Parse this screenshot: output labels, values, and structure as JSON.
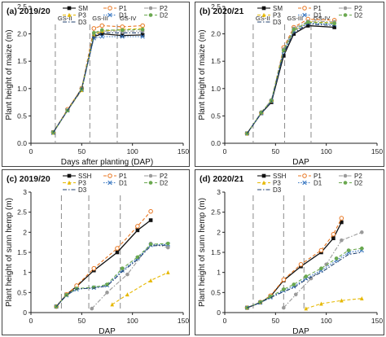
{
  "colors": {
    "SM": "#111111",
    "SSH": "#111111",
    "P1": "#e87722",
    "P2": "#9a9a9a",
    "P3": "#e6b800",
    "D1": "#3a78c2",
    "D2": "#6aa84f",
    "D3": "#1f3f6e"
  },
  "chart_data": [
    {
      "type": "line",
      "title": "(a) 2019/20",
      "xlabel": "Days after planting (DAP)",
      "ylabel": "Plant height of maize (m)",
      "xlim": [
        0,
        150
      ],
      "ylim": [
        0,
        2.5
      ],
      "xticks": [
        0,
        50,
        100,
        150
      ],
      "yticks": [
        0,
        0.5,
        1,
        1.5,
        2,
        2.5
      ],
      "ytick_labels": [
        "0.0",
        "0.5",
        "1.0",
        "1.5",
        "2.0",
        "2.5"
      ],
      "grid": false,
      "legend_position": "top-right",
      "growth_stages": [
        {
          "label": "GS-II",
          "x": 24
        },
        {
          "label": "GS-III",
          "x": 58
        },
        {
          "label": "GS-IV",
          "x": 85
        }
      ],
      "series": [
        {
          "name": "SM",
          "color_key": "SM",
          "dash": "solid",
          "marker": "square",
          "x": [
            22,
            36,
            50,
            62,
            70,
            90,
            110
          ],
          "y": [
            0.2,
            0.6,
            1.0,
            1.95,
            2.0,
            1.97,
            1.98
          ]
        },
        {
          "name": "P1",
          "color_key": "P1",
          "dash": "dash",
          "marker": "circle-open",
          "x": [
            22,
            36,
            50,
            62,
            70,
            90,
            110
          ],
          "y": [
            0.2,
            0.62,
            1.0,
            2.1,
            2.15,
            2.13,
            2.15
          ]
        },
        {
          "name": "P2",
          "color_key": "P2",
          "dash": "dashdot",
          "marker": "circle",
          "x": [
            22,
            36,
            50,
            62,
            70,
            90,
            110
          ],
          "y": [
            0.2,
            0.6,
            0.98,
            2.0,
            2.05,
            2.05,
            2.05
          ]
        },
        {
          "name": "P3",
          "color_key": "P3",
          "dash": "dash",
          "marker": "triangle",
          "x": [
            22,
            36,
            50,
            62,
            70,
            90,
            110
          ],
          "y": [
            0.19,
            0.6,
            0.97,
            1.98,
            2.05,
            2.08,
            2.1
          ]
        },
        {
          "name": "D1",
          "color_key": "D1",
          "dash": "dot",
          "marker": "cross",
          "x": [
            22,
            36,
            50,
            62,
            70,
            90,
            110
          ],
          "y": [
            0.19,
            0.6,
            0.98,
            1.92,
            1.95,
            1.95,
            1.95
          ]
        },
        {
          "name": "D2",
          "color_key": "D2",
          "dash": "dash",
          "marker": "circle",
          "x": [
            22,
            36,
            50,
            62,
            70,
            90,
            110
          ],
          "y": [
            0.2,
            0.6,
            0.99,
            2.02,
            2.07,
            2.07,
            2.08
          ]
        },
        {
          "name": "D3",
          "color_key": "D3",
          "dash": "dashdot",
          "marker": "none",
          "x": [
            22,
            36,
            50,
            62,
            70,
            90,
            110
          ],
          "y": [
            0.2,
            0.6,
            0.98,
            1.97,
            2.02,
            2.02,
            2.02
          ]
        }
      ]
    },
    {
      "type": "line",
      "title": "(b) 2020/21",
      "xlabel": "DAP",
      "ylabel": "Plant height of maize (m)",
      "xlim": [
        0,
        150
      ],
      "ylim": [
        0,
        2.5
      ],
      "xticks": [
        0,
        50,
        100,
        150
      ],
      "yticks": [
        0,
        0.5,
        1,
        1.5,
        2,
        2.5
      ],
      "ytick_labels": [
        "0.0",
        "0.5",
        "1.0",
        "1.5",
        "2.0",
        "2.5"
      ],
      "grid": false,
      "legend_position": "top-right",
      "growth_stages": [
        {
          "label": "GS-II",
          "x": 28
        },
        {
          "label": "GS-III",
          "x": 59
        },
        {
          "label": "GS-IV",
          "x": 85
        }
      ],
      "series": [
        {
          "name": "SM",
          "color_key": "SM",
          "dash": "solid",
          "marker": "square",
          "x": [
            22,
            36,
            46,
            58,
            68,
            82,
            108
          ],
          "y": [
            0.18,
            0.55,
            0.75,
            1.6,
            2.0,
            2.15,
            2.12
          ]
        },
        {
          "name": "P1",
          "color_key": "P1",
          "dash": "dash",
          "marker": "circle-open",
          "x": [
            22,
            36,
            46,
            58,
            68,
            82,
            108
          ],
          "y": [
            0.18,
            0.56,
            0.78,
            1.75,
            2.12,
            2.27,
            2.25
          ]
        },
        {
          "name": "P2",
          "color_key": "P2",
          "dash": "dashdot",
          "marker": "circle",
          "x": [
            22,
            36,
            46,
            58,
            68,
            82,
            108
          ],
          "y": [
            0.18,
            0.57,
            0.79,
            1.72,
            2.1,
            2.23,
            2.22
          ]
        },
        {
          "name": "P3",
          "color_key": "P3",
          "dash": "dash",
          "marker": "triangle",
          "x": [
            22,
            36,
            46,
            58,
            68,
            82,
            108
          ],
          "y": [
            0.18,
            0.56,
            0.78,
            1.7,
            2.05,
            2.22,
            2.2
          ]
        },
        {
          "name": "D1",
          "color_key": "D1",
          "dash": "dot",
          "marker": "cross",
          "x": [
            22,
            36,
            46,
            58,
            68,
            82,
            108
          ],
          "y": [
            0.18,
            0.55,
            0.77,
            1.68,
            2.05,
            2.2,
            2.17
          ]
        },
        {
          "name": "D2",
          "color_key": "D2",
          "dash": "dash",
          "marker": "circle",
          "x": [
            22,
            36,
            46,
            58,
            68,
            82,
            108
          ],
          "y": [
            0.18,
            0.56,
            0.78,
            1.7,
            2.08,
            2.21,
            2.19
          ]
        },
        {
          "name": "D3",
          "color_key": "D3",
          "dash": "dashdot",
          "marker": "none",
          "x": [
            22,
            36,
            46,
            58,
            68,
            82,
            108
          ],
          "y": [
            0.18,
            0.55,
            0.76,
            1.65,
            2.02,
            2.18,
            2.15
          ]
        }
      ]
    },
    {
      "type": "line",
      "title": "(c) 2019/20",
      "xlabel": "DAP",
      "ylabel": "Plant height of sunn hemp (m)",
      "xlim": [
        0,
        150
      ],
      "ylim": [
        0,
        3
      ],
      "xticks": [
        0,
        50,
        100,
        150
      ],
      "yticks": [
        0,
        0.5,
        1,
        1.5,
        2,
        2.5,
        3
      ],
      "ytick_labels": [
        "0",
        "0.5",
        "1",
        "1.5",
        "2",
        "2.5",
        "3"
      ],
      "grid": false,
      "legend_position": "top-right",
      "growth_stages": [
        {
          "label": "",
          "x": 30
        },
        {
          "label": "",
          "x": 57
        },
        {
          "label": "",
          "x": 88
        }
      ],
      "series": [
        {
          "name": "SSH",
          "color_key": "SSH",
          "dash": "solid",
          "marker": "square",
          "x": [
            25,
            35,
            45,
            62,
            85,
            105,
            118
          ],
          "y": [
            0.15,
            0.45,
            0.65,
            1.05,
            1.5,
            2.05,
            2.3
          ]
        },
        {
          "name": "P1",
          "color_key": "P1",
          "dash": "dash",
          "marker": "circle-open",
          "x": [
            25,
            35,
            45,
            62,
            85,
            105,
            118
          ],
          "y": [
            0.15,
            0.45,
            0.67,
            1.1,
            1.6,
            2.15,
            2.52
          ]
        },
        {
          "name": "P2",
          "color_key": "P2",
          "dash": "dashdot",
          "marker": "circle",
          "x": [
            60,
            75,
            95,
            118,
            135
          ],
          "y": [
            0.1,
            0.5,
            0.95,
            1.72,
            1.62
          ]
        },
        {
          "name": "P3",
          "color_key": "P3",
          "dash": "dash",
          "marker": "triangle",
          "x": [
            80,
            95,
            118,
            135
          ],
          "y": [
            0.2,
            0.45,
            0.8,
            1.0
          ]
        },
        {
          "name": "D1",
          "color_key": "D1",
          "dash": "dot",
          "marker": "cross",
          "x": [
            25,
            35,
            45,
            62,
            75,
            90,
            105,
            118,
            135
          ],
          "y": [
            0.15,
            0.43,
            0.58,
            0.62,
            0.68,
            1.05,
            1.35,
            1.68,
            1.7
          ]
        },
        {
          "name": "D2",
          "color_key": "D2",
          "dash": "dash",
          "marker": "circle",
          "x": [
            25,
            35,
            45,
            62,
            75,
            90,
            105,
            118,
            135
          ],
          "y": [
            0.15,
            0.44,
            0.6,
            0.63,
            0.7,
            1.1,
            1.38,
            1.7,
            1.72
          ]
        },
        {
          "name": "D3",
          "color_key": "D3",
          "dash": "dashdot",
          "marker": "none",
          "x": [
            25,
            35,
            45,
            62,
            75,
            90,
            105,
            118,
            135
          ],
          "y": [
            0.15,
            0.43,
            0.59,
            0.61,
            0.66,
            1.02,
            1.32,
            1.66,
            1.68
          ]
        }
      ]
    },
    {
      "type": "line",
      "title": "(d) 2020/21",
      "xlabel": "DAP",
      "ylabel": "Plant height of sunn hemp (m)",
      "xlim": [
        0,
        150
      ],
      "ylim": [
        0,
        3
      ],
      "xticks": [
        0,
        50,
        100,
        150
      ],
      "yticks": [
        0,
        0.5,
        1,
        1.5,
        2,
        2.5,
        3
      ],
      "ytick_labels": [
        "0",
        "0.5",
        "1",
        "1.5",
        "2",
        "2.5",
        "3"
      ],
      "grid": false,
      "legend_position": "top-right",
      "growth_stages": [
        {
          "label": "",
          "x": 28
        },
        {
          "label": "",
          "x": 58
        },
        {
          "label": "",
          "x": 78
        }
      ],
      "series": [
        {
          "name": "SSH",
          "color_key": "SSH",
          "dash": "solid",
          "marker": "square",
          "x": [
            22,
            35,
            45,
            58,
            75,
            95,
            107,
            115
          ],
          "y": [
            0.12,
            0.25,
            0.4,
            0.8,
            1.15,
            1.5,
            1.85,
            2.25
          ]
        },
        {
          "name": "P1",
          "color_key": "P1",
          "dash": "dash",
          "marker": "circle-open",
          "x": [
            22,
            35,
            45,
            58,
            75,
            95,
            107,
            115
          ],
          "y": [
            0.12,
            0.26,
            0.42,
            0.82,
            1.2,
            1.55,
            1.95,
            2.35
          ]
        },
        {
          "name": "P2",
          "color_key": "P2",
          "dash": "dashdot",
          "marker": "circle",
          "x": [
            58,
            70,
            85,
            100,
            115,
            135
          ],
          "y": [
            0.12,
            0.45,
            0.85,
            1.2,
            1.8,
            2.0
          ]
        },
        {
          "name": "P3",
          "color_key": "P3",
          "dash": "dash",
          "marker": "triangle",
          "x": [
            80,
            95,
            115,
            135
          ],
          "y": [
            0.1,
            0.22,
            0.3,
            0.35
          ]
        },
        {
          "name": "D1",
          "color_key": "D1",
          "dash": "dot",
          "marker": "cross",
          "x": [
            22,
            35,
            45,
            58,
            68,
            80,
            95,
            110,
            122,
            135
          ],
          "y": [
            0.12,
            0.25,
            0.38,
            0.55,
            0.65,
            0.85,
            1.05,
            1.3,
            1.5,
            1.55
          ]
        },
        {
          "name": "D2",
          "color_key": "D2",
          "dash": "dash",
          "marker": "circle",
          "x": [
            22,
            35,
            45,
            58,
            68,
            80,
            95,
            110,
            122,
            135
          ],
          "y": [
            0.12,
            0.26,
            0.4,
            0.58,
            0.7,
            0.9,
            1.1,
            1.35,
            1.55,
            1.6
          ]
        },
        {
          "name": "D3",
          "color_key": "D3",
          "dash": "dashdot",
          "marker": "none",
          "x": [
            22,
            35,
            45,
            58,
            68,
            80,
            95,
            110,
            122,
            135
          ],
          "y": [
            0.12,
            0.25,
            0.37,
            0.52,
            0.62,
            0.82,
            1.0,
            1.25,
            1.45,
            1.5
          ]
        }
      ]
    }
  ]
}
